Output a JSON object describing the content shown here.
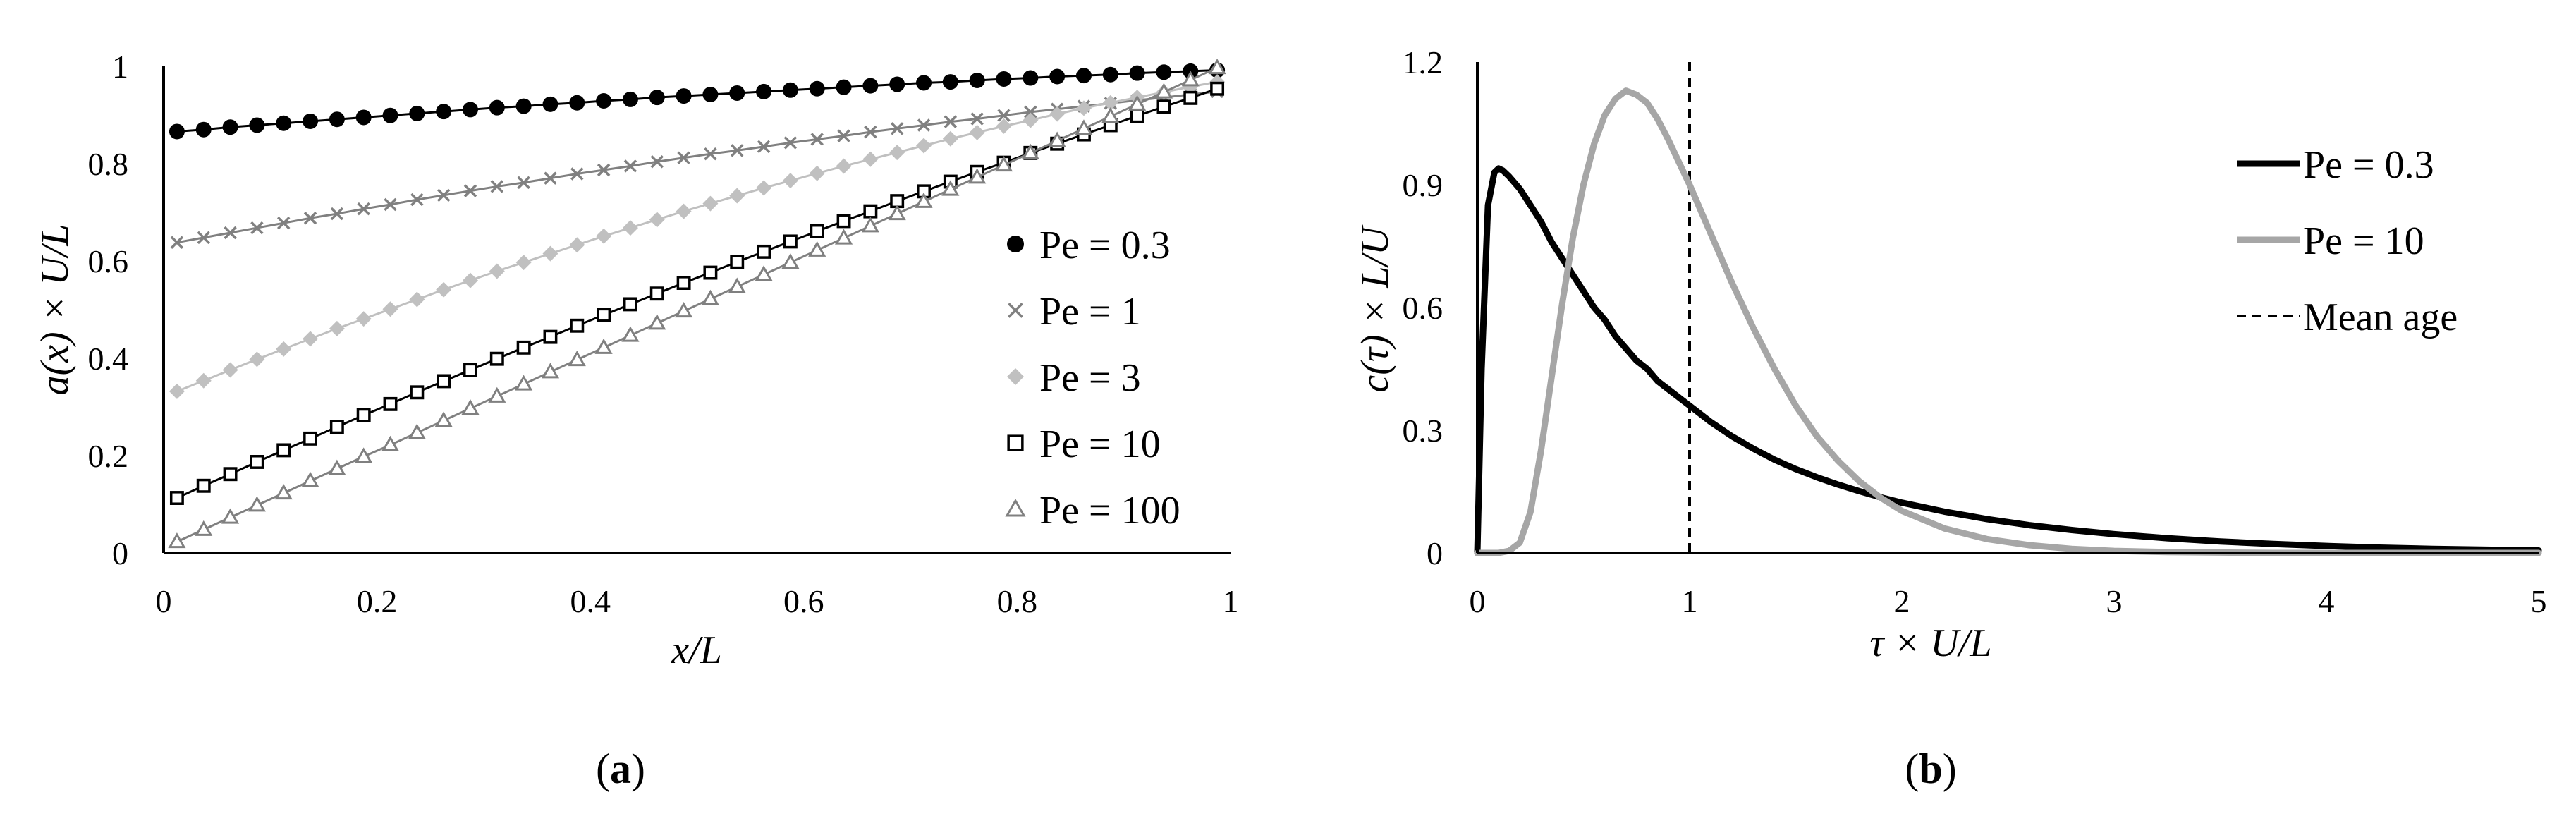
{
  "chart_data": [
    {
      "type": "line",
      "panel_label": "a",
      "xlabel": "x/L",
      "ylabel": "a(x) × U/L",
      "xlim": [
        0,
        1
      ],
      "ylim": [
        0,
        1
      ],
      "x_ticks": [
        "0",
        "0.2",
        "0.4",
        "0.6",
        "0.8",
        "1"
      ],
      "y_ticks": [
        "0",
        "0.2",
        "0.4",
        "0.6",
        "0.8",
        "1"
      ],
      "x_tick_values": [
        0,
        0.2,
        0.4,
        0.6,
        0.8,
        1
      ],
      "y_tick_values": [
        0,
        0.2,
        0.4,
        0.6,
        0.8,
        1
      ],
      "legend_position": "right",
      "x": [
        0.0125,
        0.0375,
        0.0625,
        0.0875,
        0.1125,
        0.1375,
        0.1625,
        0.1875,
        0.2125,
        0.2375,
        0.2625,
        0.2875,
        0.3125,
        0.3375,
        0.3625,
        0.3875,
        0.4125,
        0.4375,
        0.4625,
        0.4875,
        0.5125,
        0.5375,
        0.5625,
        0.5875,
        0.6125,
        0.6375,
        0.6625,
        0.6875,
        0.7125,
        0.7375,
        0.7625,
        0.7875,
        0.8125,
        0.8375,
        0.8625,
        0.8875,
        0.9125,
        0.9375,
        0.9625,
        0.9875
      ],
      "series": [
        {
          "name": "Pe = 0.3",
          "marker": "circle",
          "color": "#000000",
          "values": [
            0.866,
            0.87,
            0.875,
            0.879,
            0.883,
            0.887,
            0.891,
            0.895,
            0.899,
            0.903,
            0.907,
            0.911,
            0.915,
            0.918,
            0.922,
            0.925,
            0.929,
            0.932,
            0.936,
            0.939,
            0.942,
            0.945,
            0.948,
            0.951,
            0.954,
            0.957,
            0.96,
            0.963,
            0.966,
            0.968,
            0.971,
            0.974,
            0.976,
            0.979,
            0.981,
            0.983,
            0.986,
            0.988,
            0.99,
            0.992
          ]
        },
        {
          "name": "Pe = 1",
          "marker": "x",
          "color": "#808080",
          "values": [
            0.638,
            0.648,
            0.658,
            0.668,
            0.678,
            0.688,
            0.697,
            0.707,
            0.716,
            0.726,
            0.735,
            0.744,
            0.753,
            0.761,
            0.77,
            0.779,
            0.787,
            0.795,
            0.804,
            0.812,
            0.82,
            0.827,
            0.835,
            0.843,
            0.85,
            0.857,
            0.865,
            0.872,
            0.879,
            0.886,
            0.892,
            0.899,
            0.906,
            0.912,
            0.918,
            0.924,
            0.93,
            0.936,
            0.942,
            0.948
          ]
        },
        {
          "name": "Pe = 3",
          "marker": "diamond",
          "color": "#c0c0c0",
          "values": [
            0.332,
            0.354,
            0.376,
            0.398,
            0.419,
            0.44,
            0.461,
            0.481,
            0.501,
            0.521,
            0.541,
            0.56,
            0.579,
            0.597,
            0.615,
            0.633,
            0.651,
            0.668,
            0.685,
            0.702,
            0.718,
            0.734,
            0.75,
            0.765,
            0.78,
            0.795,
            0.809,
            0.823,
            0.837,
            0.851,
            0.864,
            0.877,
            0.889,
            0.902,
            0.914,
            0.925,
            0.936,
            0.947,
            0.958,
            0.968
          ]
        },
        {
          "name": "Pe = 10",
          "marker": "square",
          "color": "#000000",
          "values": [
            0.113,
            0.138,
            0.162,
            0.187,
            0.211,
            0.235,
            0.259,
            0.283,
            0.306,
            0.33,
            0.353,
            0.376,
            0.399,
            0.422,
            0.444,
            0.467,
            0.489,
            0.511,
            0.533,
            0.555,
            0.576,
            0.598,
            0.619,
            0.64,
            0.661,
            0.682,
            0.702,
            0.723,
            0.743,
            0.763,
            0.783,
            0.802,
            0.822,
            0.841,
            0.86,
            0.879,
            0.898,
            0.917,
            0.935,
            0.954
          ]
        },
        {
          "name": "Pe = 100",
          "marker": "triangle",
          "color": "#808080",
          "values": [
            0.023,
            0.048,
            0.073,
            0.098,
            0.123,
            0.148,
            0.173,
            0.198,
            0.222,
            0.247,
            0.272,
            0.297,
            0.322,
            0.347,
            0.372,
            0.397,
            0.422,
            0.447,
            0.472,
            0.497,
            0.522,
            0.547,
            0.572,
            0.597,
            0.622,
            0.647,
            0.672,
            0.697,
            0.722,
            0.747,
            0.772,
            0.797,
            0.822,
            0.847,
            0.872,
            0.897,
            0.922,
            0.947,
            0.972,
            0.997
          ]
        }
      ]
    },
    {
      "type": "line",
      "panel_label": "b",
      "xlabel": "τ × U/L",
      "ylabel": "c(τ) × L/U",
      "xlim": [
        0,
        5
      ],
      "ylim": [
        0,
        1.2
      ],
      "x_ticks": [
        "0",
        "1",
        "2",
        "3",
        "4",
        "5"
      ],
      "y_ticks": [
        "0",
        "0.3",
        "0.6",
        "0.9",
        "1.2"
      ],
      "x_tick_values": [
        0,
        1,
        2,
        3,
        4,
        5
      ],
      "y_tick_values": [
        0,
        0.3,
        0.6,
        0.9,
        1.2
      ],
      "legend_position": "top-right",
      "x": [
        0.0,
        0.02,
        0.05,
        0.08,
        0.1,
        0.12,
        0.15,
        0.2,
        0.25,
        0.3,
        0.35,
        0.4,
        0.45,
        0.5,
        0.55,
        0.6,
        0.65,
        0.7,
        0.75,
        0.8,
        0.85,
        0.9,
        0.95,
        1.0,
        1.1,
        1.2,
        1.3,
        1.4,
        1.5,
        1.6,
        1.7,
        1.8,
        1.9,
        2.0,
        2.2,
        2.4,
        2.6,
        2.8,
        3.0,
        3.25,
        3.5,
        3.75,
        4.0,
        4.25,
        4.5,
        4.75,
        5.0
      ],
      "series": [
        {
          "name": "Pe = 0.3",
          "color": "#000000",
          "values": [
            0.0,
            0.45,
            0.85,
            0.93,
            0.94,
            0.935,
            0.92,
            0.89,
            0.85,
            0.81,
            0.76,
            0.72,
            0.68,
            0.64,
            0.6,
            0.57,
            0.53,
            0.5,
            0.47,
            0.45,
            0.42,
            0.4,
            0.38,
            0.36,
            0.32,
            0.285,
            0.255,
            0.228,
            0.205,
            0.185,
            0.167,
            0.151,
            0.136,
            0.123,
            0.101,
            0.083,
            0.068,
            0.056,
            0.046,
            0.036,
            0.028,
            0.022,
            0.017,
            0.013,
            0.01,
            0.008,
            0.006
          ]
        },
        {
          "name": "Pe = 10",
          "color": "#a6a6a6",
          "values": [
            0.0,
            0.0,
            0.0,
            0.0,
            0.0,
            0.002,
            0.005,
            0.025,
            0.1,
            0.25,
            0.43,
            0.61,
            0.77,
            0.9,
            1.0,
            1.07,
            1.11,
            1.13,
            1.12,
            1.1,
            1.06,
            1.01,
            0.955,
            0.9,
            0.78,
            0.66,
            0.55,
            0.45,
            0.36,
            0.285,
            0.225,
            0.175,
            0.135,
            0.103,
            0.06,
            0.034,
            0.019,
            0.01,
            0.005,
            0.002,
            0.001,
            0.0,
            0.0,
            0.0,
            0.0,
            0.0,
            0.0
          ]
        }
      ],
      "annotations": [
        {
          "name": "Mean age",
          "type": "vertical-dashed-line",
          "x": 1
        }
      ]
    }
  ]
}
